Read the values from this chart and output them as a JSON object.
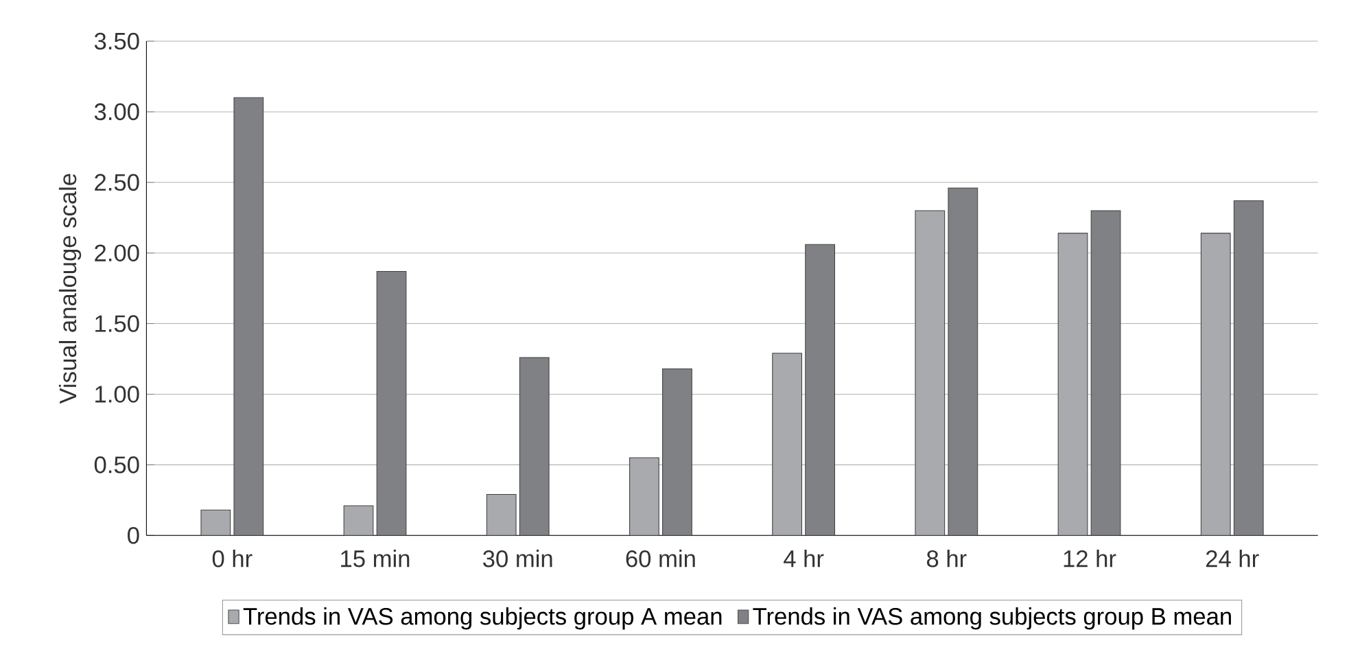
{
  "chart_data": {
    "type": "bar",
    "ylabel": "Visual analouge scale",
    "categories": [
      "0 hr",
      "15 min",
      "30 min",
      "60 min",
      "4 hr",
      "8 hr",
      "12 hr",
      "24 hr"
    ],
    "series": [
      {
        "name": "Trends in VAS among subjects group A mean",
        "color": "#a9aaae",
        "values": [
          0.18,
          0.21,
          0.29,
          0.55,
          1.29,
          2.3,
          2.14,
          2.14
        ]
      },
      {
        "name": "Trends in VAS among subjects group B mean",
        "color": "#808185",
        "values": [
          3.1,
          1.87,
          1.26,
          1.18,
          2.06,
          2.46,
          2.3,
          2.37
        ]
      }
    ],
    "ylim": [
      0,
      3.5
    ],
    "yticks": [
      0,
      {
        "value": 0.5,
        "label": "0.50"
      },
      {
        "value": 1,
        "label": "1.00"
      },
      {
        "value": 1.5,
        "label": "1.50"
      },
      {
        "value": 2,
        "label": "2.00"
      },
      {
        "value": 2.5,
        "label": "2.50"
      },
      {
        "value": 3,
        "label": "3.00"
      },
      {
        "value": 3.5,
        "label": "3.50"
      }
    ],
    "grid": "y",
    "legend": "bottom"
  }
}
